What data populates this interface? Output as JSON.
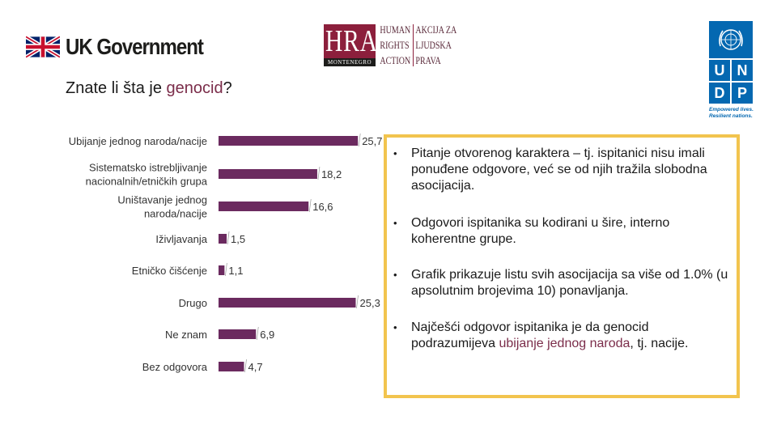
{
  "logos": {
    "uk_gov": "UK Government",
    "hra_letters": "HRA",
    "hra_montenegro": "MONTENEGRO",
    "hra_col1": [
      "HUMAN",
      "RIGHTS",
      "ACTION"
    ],
    "hra_col2": [
      "AKCIJA ZA",
      "LJUDSKA",
      "PRAVA"
    ],
    "undp_letters": [
      "U",
      "N",
      "D",
      "P"
    ],
    "undp_tagline": [
      "Empowered lives.",
      "Resilient nations."
    ]
  },
  "title": {
    "prefix": "Znate li šta je ",
    "accent": "genocid",
    "suffix": "?"
  },
  "chart_data": {
    "type": "bar",
    "orientation": "horizontal",
    "categories": [
      "Ubijanje jednog naroda/nacije",
      "Sistematsko istrebljivanje nacionalnih/etničkih grupa",
      "Uništavanje jednog naroda/nacije",
      "Iživljavanja",
      "Etničko čišćenje",
      "Drugo",
      "Ne znam",
      "Bez odgovora"
    ],
    "category_lines": [
      [
        "Ubijanje jednog naroda/nacije"
      ],
      [
        "Sistematsko istrebljivanje",
        "nacionalnih/etničkih grupa"
      ],
      [
        "Uništavanje jednog",
        "naroda/nacije"
      ],
      [
        "Iživljavanja"
      ],
      [
        "Etničko čišćenje"
      ],
      [
        "Drugo"
      ],
      [
        "Ne znam"
      ],
      [
        "Bez odgovora"
      ]
    ],
    "values": [
      25.7,
      18.2,
      16.6,
      1.5,
      1.1,
      25.3,
      6.9,
      4.7
    ],
    "value_labels": [
      "25,7",
      "18,2",
      "16,6",
      "1,5",
      "1,1",
      "25,3",
      "6,9",
      "4,7"
    ],
    "bar_color": "#6b2a5f",
    "xlim": [
      0,
      30
    ],
    "grid": false,
    "legend": "none",
    "title": "",
    "xlabel": "",
    "ylabel": ""
  },
  "info": {
    "bullet_char": "•",
    "b1": "Pitanje otvorenog karaktera – tj. ispitanici nisu imali ponuđene odgovore, već se od njih tražila slobodna asocijacija.",
    "b2": "Odgovori ispitanika su kodirani u šire, interno koherentne grupe.",
    "b3": "Grafik prikazuje listu svih asocijacija sa više od 1.0% (u apsolutnim brojevima 10) ponavljanja.",
    "b4_pre": "Najčešći odgovor ispitanika je da genocid podrazumijeva ",
    "b4_hl": "ubijanje jednog naroda",
    "b4_post": ", tj. nacije."
  },
  "colors": {
    "accent": "#7b2d4a",
    "box_border": "#f2c44e",
    "undp_blue": "#0468b1",
    "hra_red": "#8c1f3c"
  }
}
